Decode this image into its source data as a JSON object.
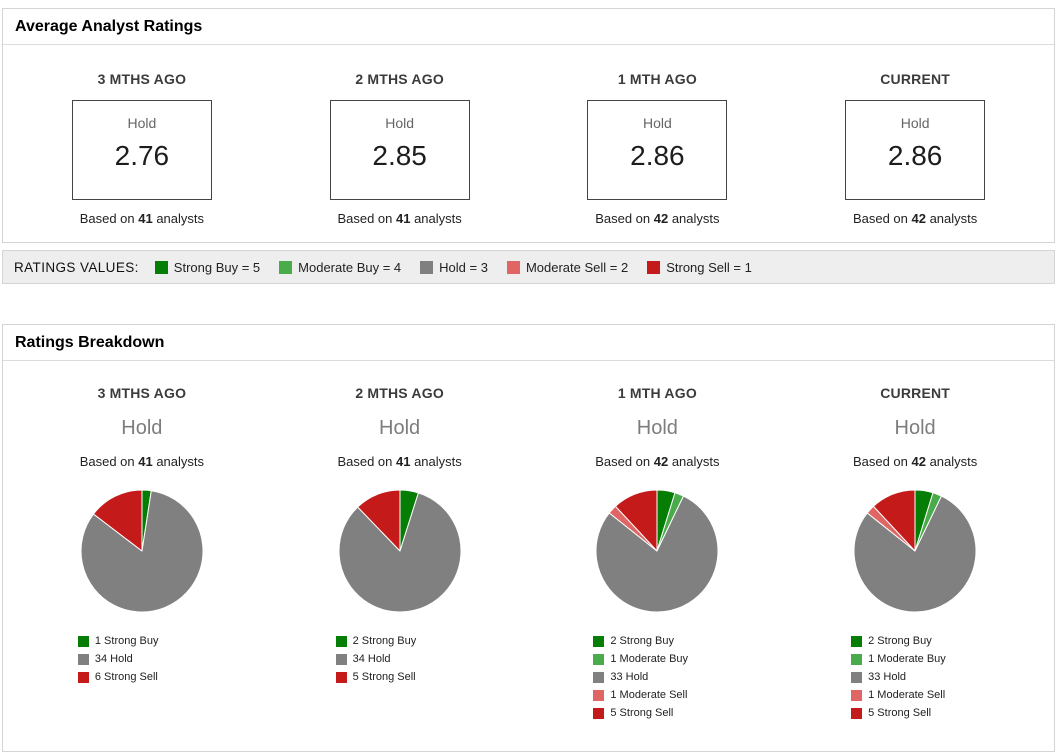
{
  "colors": {
    "strong_buy": "#067e06",
    "moderate_buy": "#4aab4a",
    "hold": "#808080",
    "moderate_sell": "#e06666",
    "strong_sell": "#c51a1a"
  },
  "average_section": {
    "title": "Average Analyst Ratings",
    "columns": [
      {
        "period": "3 MTHS AGO",
        "rating_label": "Hold",
        "value": "2.76",
        "based_prefix": "Based on ",
        "analysts": "41",
        "based_suffix": " analysts"
      },
      {
        "period": "2 MTHS AGO",
        "rating_label": "Hold",
        "value": "2.85",
        "based_prefix": "Based on ",
        "analysts": "41",
        "based_suffix": " analysts"
      },
      {
        "period": "1 MTH AGO",
        "rating_label": "Hold",
        "value": "2.86",
        "based_prefix": "Based on ",
        "analysts": "42",
        "based_suffix": " analysts"
      },
      {
        "period": "CURRENT",
        "rating_label": "Hold",
        "value": "2.86",
        "based_prefix": "Based on ",
        "analysts": "42",
        "based_suffix": " analysts"
      }
    ]
  },
  "ratings_values": {
    "label": "RATINGS VALUES:",
    "items": [
      {
        "label": "Strong Buy = 5",
        "color": "#067e06"
      },
      {
        "label": "Moderate Buy = 4",
        "color": "#4aab4a"
      },
      {
        "label": "Hold = 3",
        "color": "#808080"
      },
      {
        "label": "Moderate Sell = 2",
        "color": "#e06666"
      },
      {
        "label": "Strong Sell = 1",
        "color": "#c51a1a"
      }
    ]
  },
  "breakdown_section": {
    "title": "Ratings Breakdown",
    "columns": [
      {
        "period": "3 MTHS AGO",
        "rating_label": "Hold",
        "based_prefix": "Based on ",
        "analysts": "41",
        "based_suffix": " analysts"
      },
      {
        "period": "2 MTHS AGO",
        "rating_label": "Hold",
        "based_prefix": "Based on ",
        "analysts": "41",
        "based_suffix": " analysts"
      },
      {
        "period": "1 MTH AGO",
        "rating_label": "Hold",
        "based_prefix": "Based on ",
        "analysts": "42",
        "based_suffix": " analysts"
      },
      {
        "period": "CURRENT",
        "rating_label": "Hold",
        "based_prefix": "Based on ",
        "analysts": "42",
        "based_suffix": " analysts"
      }
    ]
  },
  "chart_data": [
    {
      "type": "table",
      "title": "Average Analyst Ratings",
      "columns": [
        "3 MTHS AGO",
        "2 MTHS AGO",
        "1 MTH AGO",
        "CURRENT"
      ],
      "rows": [
        [
          "Hold",
          "Hold",
          "Hold",
          "Hold"
        ],
        [
          2.76,
          2.85,
          2.86,
          2.86
        ],
        [
          "Based on 41 analysts",
          "Based on 41 analysts",
          "Based on 42 analysts",
          "Based on 42 analysts"
        ]
      ],
      "note": "Ratings values: Strong Buy = 5, Moderate Buy = 4, Hold = 3, Moderate Sell = 2, Strong Sell = 1"
    },
    {
      "type": "pie",
      "title": "3 MTHS AGO",
      "labels": [
        "Strong Buy",
        "Hold",
        "Strong Sell"
      ],
      "values": [
        1,
        34,
        6
      ],
      "colors": [
        "#067e06",
        "#808080",
        "#c51a1a"
      ],
      "legend": [
        "1 Strong Buy",
        "34 Hold",
        "6 Strong Sell"
      ],
      "legend_position": "bottom"
    },
    {
      "type": "pie",
      "title": "2 MTHS AGO",
      "labels": [
        "Strong Buy",
        "Hold",
        "Strong Sell"
      ],
      "values": [
        2,
        34,
        5
      ],
      "colors": [
        "#067e06",
        "#808080",
        "#c51a1a"
      ],
      "legend": [
        "2 Strong Buy",
        "34 Hold",
        "5 Strong Sell"
      ],
      "legend_position": "bottom"
    },
    {
      "type": "pie",
      "title": "1 MTH AGO",
      "labels": [
        "Strong Buy",
        "Moderate Buy",
        "Hold",
        "Moderate Sell",
        "Strong Sell"
      ],
      "values": [
        2,
        1,
        33,
        1,
        5
      ],
      "colors": [
        "#067e06",
        "#4aab4a",
        "#808080",
        "#e06666",
        "#c51a1a"
      ],
      "legend": [
        "2 Strong Buy",
        "1 Moderate Buy",
        "33 Hold",
        "1 Moderate Sell",
        "5 Strong Sell"
      ],
      "legend_position": "bottom"
    },
    {
      "type": "pie",
      "title": "CURRENT",
      "labels": [
        "Strong Buy",
        "Moderate Buy",
        "Hold",
        "Moderate Sell",
        "Strong Sell"
      ],
      "values": [
        2,
        1,
        33,
        1,
        5
      ],
      "colors": [
        "#067e06",
        "#4aab4a",
        "#808080",
        "#e06666",
        "#c51a1a"
      ],
      "legend": [
        "2 Strong Buy",
        "1 Moderate Buy",
        "33 Hold",
        "1 Moderate Sell",
        "5 Strong Sell"
      ],
      "legend_position": "bottom"
    }
  ]
}
